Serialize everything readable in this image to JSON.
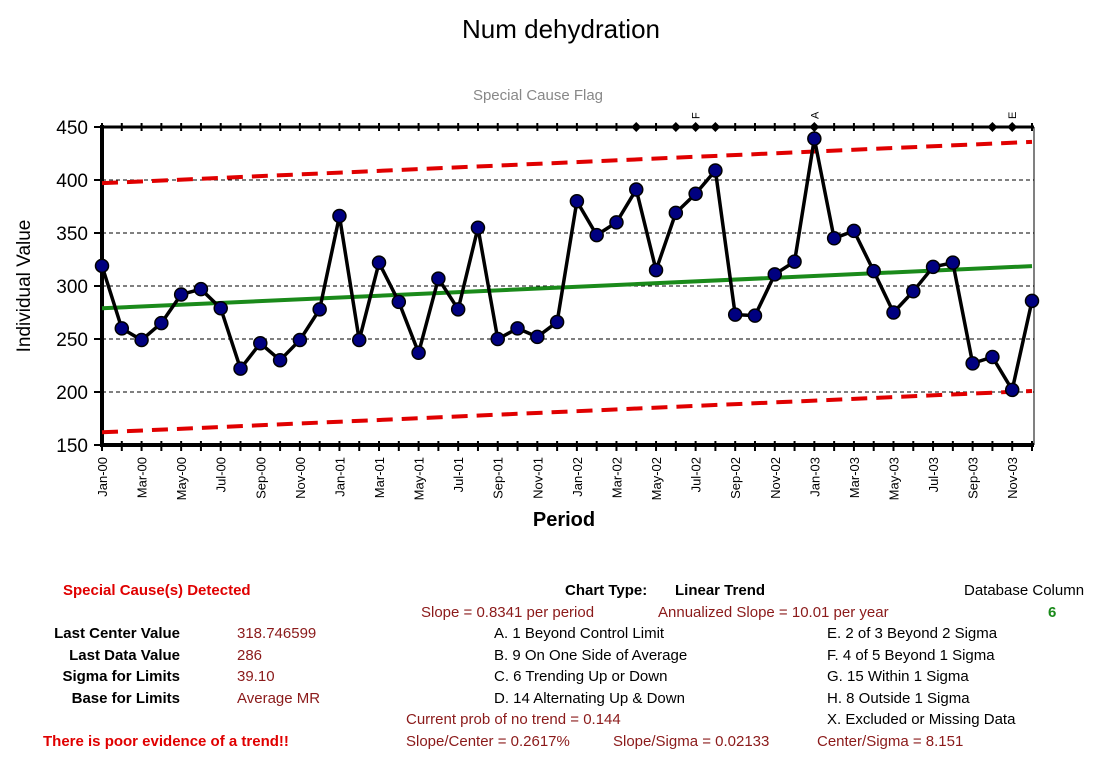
{
  "chart_data": {
    "type": "line",
    "title": "Num dehydration",
    "subtitle": "Special Cause Flag",
    "xlabel": "Period",
    "ylabel": "Individual Value",
    "ylim": [
      150,
      450
    ],
    "y_ticks": [
      150,
      200,
      250,
      300,
      350,
      400,
      450
    ],
    "grid": "horizontal dashed",
    "x_tick_labels": [
      "Jan-00",
      "Mar-00",
      "May-00",
      "Jul-00",
      "Sep-00",
      "Nov-00",
      "Jan-01",
      "Mar-01",
      "May-01",
      "Jul-01",
      "Sep-01",
      "Nov-01",
      "Jan-02",
      "Mar-02",
      "May-02",
      "Jul-02",
      "Sep-02",
      "Nov-02",
      "Jan-03",
      "Mar-03",
      "May-03",
      "Jul-03",
      "Sep-03",
      "Nov-03"
    ],
    "periods": [
      "Jan-00",
      "Feb-00",
      "Mar-00",
      "Apr-00",
      "May-00",
      "Jun-00",
      "Jul-00",
      "Aug-00",
      "Sep-00",
      "Oct-00",
      "Nov-00",
      "Dec-00",
      "Jan-01",
      "Feb-01",
      "Mar-01",
      "Apr-01",
      "May-01",
      "Jun-01",
      "Jul-01",
      "Aug-01",
      "Sep-01",
      "Oct-01",
      "Nov-01",
      "Dec-01",
      "Jan-02",
      "Feb-02",
      "Mar-02",
      "Apr-02",
      "May-02",
      "Jun-02",
      "Jul-02",
      "Aug-02",
      "Sep-02",
      "Oct-02",
      "Nov-02",
      "Dec-02",
      "Jan-03",
      "Feb-03",
      "Mar-03",
      "Apr-03",
      "May-03",
      "Jun-03",
      "Jul-03",
      "Aug-03",
      "Sep-03",
      "Oct-03",
      "Nov-03",
      "Dec-03"
    ],
    "series": [
      {
        "values": [
          319,
          260,
          249,
          265,
          292,
          297,
          279,
          222,
          246,
          230,
          249,
          278,
          366,
          249,
          322,
          285,
          237,
          307,
          278,
          355,
          250,
          260,
          252,
          266,
          380,
          348,
          360,
          391,
          315,
          369,
          387,
          409,
          273,
          272,
          311,
          323,
          439,
          345,
          352,
          314,
          275,
          295,
          318,
          322,
          227,
          233,
          202,
          286
        ]
      }
    ],
    "center_line": {
      "start": 279,
      "end": 318.75
    },
    "ucl": {
      "start": 397,
      "end": 436
    },
    "lcl": {
      "start": 162,
      "end": 201
    },
    "special_cause_flags": [
      {
        "period": "Apr-02",
        "label": ""
      },
      {
        "period": "Jun-02",
        "label": ""
      },
      {
        "period": "Jul-02",
        "label": "F"
      },
      {
        "period": "Aug-02",
        "label": ""
      },
      {
        "period": "Jan-03",
        "label": "A"
      },
      {
        "period": "Oct-03",
        "label": ""
      },
      {
        "period": "Nov-03",
        "label": "E"
      }
    ],
    "colors": {
      "series": "#000000",
      "markers": "#000080",
      "center": "#1a8a1a",
      "limits": "#e00000"
    }
  },
  "panel": {
    "detected": "Special Cause(s) Detected",
    "chart_type_label": "Chart Type:",
    "chart_type_value": "Linear Trend",
    "db_column_label": "Database Column",
    "db_column_value": "6",
    "slope": "Slope = 0.8341 per period",
    "annualized": "Annualized Slope = 10.01 per year",
    "stats": [
      {
        "label": "Last Center Value",
        "value": "318.746599"
      },
      {
        "label": "Last Data Value",
        "value": "286"
      },
      {
        "label": "Sigma for Limits",
        "value": "39.10"
      },
      {
        "label": "Base for Limits",
        "value": "Average MR"
      }
    ],
    "rules_left": [
      "A.  1 Beyond Control Limit",
      "B.  9 On One Side of Average",
      "C.  6 Trending Up or Down",
      "D.  14 Alternating  Up & Down"
    ],
    "rules_right": [
      "E.  2 of 3 Beyond 2 Sigma",
      "F.  4 of 5 Beyond 1 Sigma",
      "G.  15 Within 1 Sigma",
      "H.  8 Outside 1 Sigma",
      "X.  Excluded or Missing Data"
    ],
    "prob": "Current prob of no trend = 0.144",
    "trend_note": "There is poor evidence of a trend!!",
    "slope_center": "Slope/Center = 0.2617%",
    "slope_sigma": "Slope/Sigma = 0.02133",
    "center_sigma": "Center/Sigma = 8.151"
  }
}
